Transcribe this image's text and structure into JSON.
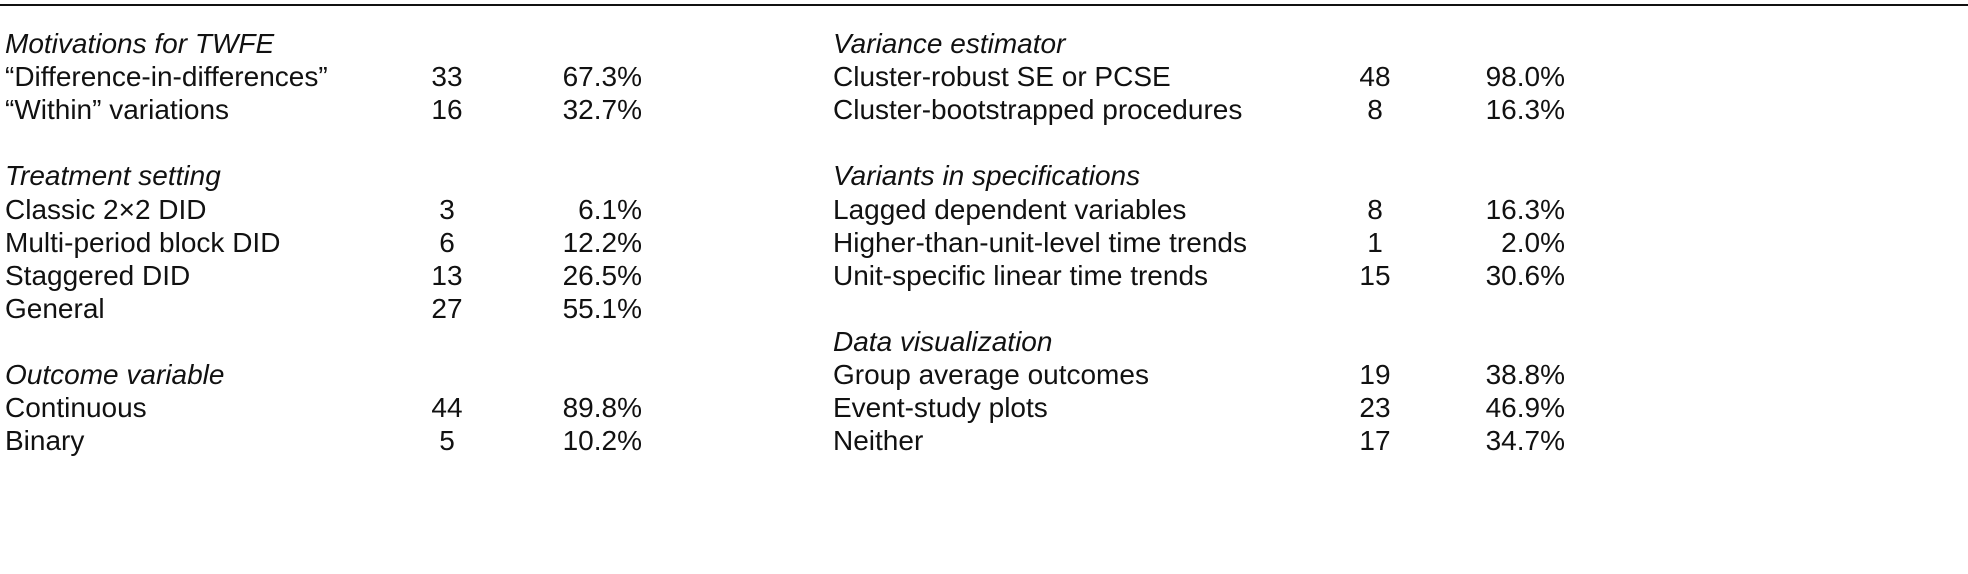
{
  "columns": [
    {
      "sections": [
        {
          "title": "Motivations for TWFE",
          "rows": [
            [
              "“Difference-in-differences”",
              "33",
              "67.3%"
            ],
            [
              "“Within” variations",
              "16",
              "32.7%"
            ]
          ]
        },
        {
          "title": "Treatment setting",
          "rows": [
            [
              "Classic 2×2 DID",
              "3",
              "6.1%"
            ],
            [
              "Multi-period block DID",
              "6",
              "12.2%"
            ],
            [
              "Staggered DID",
              "13",
              "26.5%"
            ],
            [
              "General",
              "27",
              "55.1%"
            ]
          ]
        },
        {
          "title": "Outcome variable",
          "rows": [
            [
              "Continuous",
              "44",
              "89.8%"
            ],
            [
              "Binary",
              "5",
              "10.2%"
            ]
          ]
        }
      ]
    },
    {
      "sections": [
        {
          "title": "Variance estimator",
          "rows": [
            [
              "Cluster-robust SE or PCSE",
              "48",
              "98.0%"
            ],
            [
              "Cluster-bootstrapped procedures",
              "8",
              "16.3%"
            ]
          ]
        },
        {
          "title": "Variants in specifications",
          "rows": [
            [
              "Lagged dependent variables",
              "8",
              "16.3%"
            ],
            [
              "Higher-than-unit-level time trends",
              "1",
              "2.0%"
            ],
            [
              "Unit-specific linear time trends",
              "15",
              "30.6%"
            ]
          ]
        },
        {
          "title": "Data visualization",
          "rows": [
            [
              "Group average outcomes",
              "19",
              "38.8%"
            ],
            [
              "Event-study plots",
              "23",
              "46.9%"
            ],
            [
              "Neither",
              "17",
              "34.7%"
            ]
          ]
        }
      ]
    }
  ]
}
